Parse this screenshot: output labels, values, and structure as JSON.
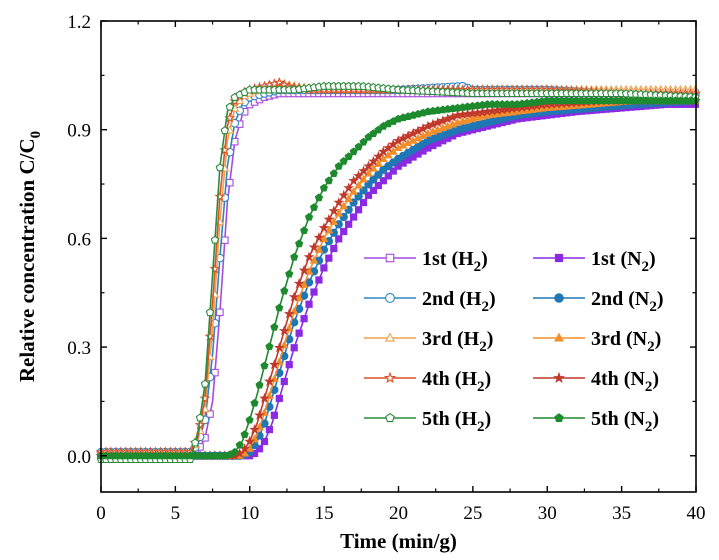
{
  "chart_data": {
    "type": "scatter",
    "title": "",
    "xlabel": "Time (min/g)",
    "ylabel": "Relative concentration C/C",
    "ylabel_sub": "0",
    "xlim": [
      0,
      40
    ],
    "ylim": [
      -0.1,
      1.2
    ],
    "x_ticks": [
      0,
      5,
      10,
      15,
      20,
      25,
      30,
      35,
      40
    ],
    "y_ticks": [
      0.0,
      0.3,
      0.6,
      0.9,
      1.2
    ],
    "y_tick_labels": [
      "0.0",
      "0.3",
      "0.6",
      "0.9",
      "1.2"
    ],
    "grid": false,
    "legend_position": "center-right",
    "series": [
      {
        "label": "1st (H",
        "sub": "2",
        "close": ")",
        "color": "#A64AE0",
        "marker": "square",
        "filled": false,
        "points": [
          [
            0,
            0
          ],
          [
            2,
            0
          ],
          [
            4,
            0
          ],
          [
            6,
            0
          ],
          [
            6.6,
            0.02
          ],
          [
            7,
            0.05
          ],
          [
            7.5,
            0.15
          ],
          [
            8,
            0.4
          ],
          [
            8.5,
            0.7
          ],
          [
            9,
            0.87
          ],
          [
            9.5,
            0.94
          ],
          [
            10,
            0.97
          ],
          [
            11,
            0.99
          ],
          [
            12,
            1.0
          ],
          [
            13,
            1.0
          ],
          [
            15,
            1.0
          ],
          [
            20,
            1.0
          ],
          [
            25,
            1.0
          ],
          [
            30,
            1.0
          ],
          [
            35,
            1.0
          ],
          [
            40,
            1.0
          ]
        ]
      },
      {
        "label": "1st (N",
        "sub": "2",
        "close": ")",
        "color": "#8A2BE2",
        "marker": "square",
        "filled": true,
        "points": [
          [
            0,
            0
          ],
          [
            5,
            0
          ],
          [
            10,
            0
          ],
          [
            10.5,
            0.01
          ],
          [
            11,
            0.04
          ],
          [
            11.5,
            0.09
          ],
          [
            12,
            0.16
          ],
          [
            12.5,
            0.23
          ],
          [
            13,
            0.3
          ],
          [
            14,
            0.42
          ],
          [
            15,
            0.52
          ],
          [
            16,
            0.6
          ],
          [
            17,
            0.66
          ],
          [
            18,
            0.72
          ],
          [
            19,
            0.76
          ],
          [
            20,
            0.8
          ],
          [
            22,
            0.85
          ],
          [
            24,
            0.89
          ],
          [
            26,
            0.91
          ],
          [
            28,
            0.93
          ],
          [
            30,
            0.94
          ],
          [
            32,
            0.95
          ],
          [
            35,
            0.96
          ],
          [
            38,
            0.97
          ],
          [
            40,
            0.97
          ]
        ]
      },
      {
        "label": "2nd (H",
        "sub": "2",
        "close": ")",
        "color": "#2E86C1",
        "marker": "circle",
        "filled": false,
        "points": [
          [
            0,
            0.01
          ],
          [
            3,
            0.01
          ],
          [
            6,
            0.01
          ],
          [
            6.5,
            0.03
          ],
          [
            7,
            0.1
          ],
          [
            7.5,
            0.28
          ],
          [
            8,
            0.55
          ],
          [
            8.5,
            0.8
          ],
          [
            9,
            0.92
          ],
          [
            9.5,
            0.97
          ],
          [
            10,
            0.99
          ],
          [
            11,
            1.0
          ],
          [
            12,
            1.01
          ],
          [
            15,
            1.01
          ],
          [
            20,
            1.01
          ],
          [
            24.3,
            1.02
          ],
          [
            25,
            1.01
          ],
          [
            30,
            1.01
          ],
          [
            35,
            1.0
          ],
          [
            40,
            1.0
          ]
        ]
      },
      {
        "label": "2nd (N",
        "sub": "2",
        "close": ")",
        "color": "#1F77B4",
        "marker": "circle",
        "filled": true,
        "points": [
          [
            0,
            0
          ],
          [
            5,
            0
          ],
          [
            9.5,
            0
          ],
          [
            10,
            0.01
          ],
          [
            10.5,
            0.04
          ],
          [
            11,
            0.09
          ],
          [
            11.5,
            0.16
          ],
          [
            12,
            0.23
          ],
          [
            12.5,
            0.3
          ],
          [
            13,
            0.37
          ],
          [
            14,
            0.48
          ],
          [
            15,
            0.57
          ],
          [
            16,
            0.64
          ],
          [
            17,
            0.7
          ],
          [
            18,
            0.75
          ],
          [
            19,
            0.79
          ],
          [
            20,
            0.82
          ],
          [
            22,
            0.87
          ],
          [
            24,
            0.9
          ],
          [
            26,
            0.92
          ],
          [
            28,
            0.94
          ],
          [
            30,
            0.95
          ],
          [
            33,
            0.96
          ],
          [
            36,
            0.97
          ],
          [
            40,
            0.98
          ]
        ]
      },
      {
        "label": "3rd (H",
        "sub": "2",
        "close": ")",
        "color": "#F0A24A",
        "marker": "triangle",
        "filled": false,
        "points": [
          [
            0,
            0.01
          ],
          [
            3,
            0.01
          ],
          [
            6,
            0.01
          ],
          [
            6.5,
            0.04
          ],
          [
            7,
            0.13
          ],
          [
            7.5,
            0.35
          ],
          [
            8,
            0.65
          ],
          [
            8.5,
            0.87
          ],
          [
            9,
            0.96
          ],
          [
            9.5,
            0.99
          ],
          [
            10,
            1.0
          ],
          [
            11,
            1.02
          ],
          [
            12,
            1.03
          ],
          [
            13,
            1.02
          ],
          [
            15,
            1.01
          ],
          [
            20,
            1.01
          ],
          [
            25,
            1.01
          ],
          [
            30,
            1.01
          ],
          [
            35,
            1.01
          ],
          [
            40,
            1.01
          ]
        ]
      },
      {
        "label": "3rd (N",
        "sub": "2",
        "close": ")",
        "color": "#F28E2B",
        "marker": "triangle",
        "filled": true,
        "points": [
          [
            0,
            0
          ],
          [
            5,
            0
          ],
          [
            9.5,
            0
          ],
          [
            10,
            0.02
          ],
          [
            10.5,
            0.06
          ],
          [
            11,
            0.12
          ],
          [
            11.5,
            0.19
          ],
          [
            12,
            0.26
          ],
          [
            12.5,
            0.33
          ],
          [
            13,
            0.4
          ],
          [
            14,
            0.51
          ],
          [
            15,
            0.6
          ],
          [
            16,
            0.67
          ],
          [
            17,
            0.73
          ],
          [
            18,
            0.78
          ],
          [
            19,
            0.82
          ],
          [
            20,
            0.85
          ],
          [
            22,
            0.89
          ],
          [
            24,
            0.92
          ],
          [
            26,
            0.94
          ],
          [
            28,
            0.95
          ],
          [
            30,
            0.96
          ],
          [
            33,
            0.97
          ],
          [
            36,
            0.98
          ],
          [
            40,
            0.98
          ]
        ]
      },
      {
        "label": "4th (H",
        "sub": "2",
        "close": ")",
        "color": "#D9532A",
        "marker": "star",
        "filled": false,
        "points": [
          [
            0,
            0.01
          ],
          [
            3,
            0.01
          ],
          [
            6,
            0.01
          ],
          [
            6.5,
            0.05
          ],
          [
            7,
            0.16
          ],
          [
            7.5,
            0.42
          ],
          [
            8,
            0.72
          ],
          [
            8.5,
            0.91
          ],
          [
            9,
            0.98
          ],
          [
            9.5,
            1.0
          ],
          [
            10,
            1.01
          ],
          [
            11,
            1.02
          ],
          [
            12,
            1.03
          ],
          [
            12.5,
            1.02
          ],
          [
            14,
            1.01
          ],
          [
            20,
            1.01
          ],
          [
            25,
            1.01
          ],
          [
            30,
            1.01
          ],
          [
            35,
            1.0
          ],
          [
            40,
            1.0
          ]
        ]
      },
      {
        "label": "4th (N",
        "sub": "2",
        "close": ")",
        "color": "#C0392B",
        "marker": "star",
        "filled": true,
        "points": [
          [
            0,
            0
          ],
          [
            5,
            0
          ],
          [
            9,
            0
          ],
          [
            9.5,
            0.01
          ],
          [
            10,
            0.04
          ],
          [
            10.5,
            0.09
          ],
          [
            11,
            0.16
          ],
          [
            11.5,
            0.23
          ],
          [
            12,
            0.3
          ],
          [
            12.5,
            0.37
          ],
          [
            13,
            0.44
          ],
          [
            14,
            0.55
          ],
          [
            15,
            0.63
          ],
          [
            16,
            0.7
          ],
          [
            17,
            0.76
          ],
          [
            18,
            0.8
          ],
          [
            19,
            0.84
          ],
          [
            20,
            0.87
          ],
          [
            22,
            0.91
          ],
          [
            24,
            0.94
          ],
          [
            26,
            0.95
          ],
          [
            28,
            0.96
          ],
          [
            30,
            0.97
          ],
          [
            34,
            0.98
          ],
          [
            40,
            0.98
          ]
        ]
      },
      {
        "label": "5th (H",
        "sub": "2",
        "close": ")",
        "color": "#2E8B3E",
        "marker": "pentagon",
        "filled": false,
        "points": [
          [
            0,
            -0.01
          ],
          [
            2,
            -0.01
          ],
          [
            4,
            -0.01
          ],
          [
            6,
            -0.01
          ],
          [
            6.5,
            0.06
          ],
          [
            7,
            0.2
          ],
          [
            7.5,
            0.5
          ],
          [
            8,
            0.8
          ],
          [
            8.5,
            0.95
          ],
          [
            9,
            0.99
          ],
          [
            9.5,
            1.0
          ],
          [
            10,
            1.01
          ],
          [
            11,
            1.01
          ],
          [
            13,
            1.01
          ],
          [
            15,
            1.02
          ],
          [
            17.5,
            1.02
          ],
          [
            20,
            1.01
          ],
          [
            25,
            1.0
          ],
          [
            30,
            1.0
          ],
          [
            35,
            1.0
          ],
          [
            40,
            0.99
          ]
        ]
      },
      {
        "label": "5th (N",
        "sub": "2",
        "close": ")",
        "color": "#1E8A2E",
        "marker": "pentagon",
        "filled": true,
        "points": [
          [
            0,
            0
          ],
          [
            5,
            0
          ],
          [
            8.5,
            0
          ],
          [
            9,
            0.01
          ],
          [
            9.5,
            0.04
          ],
          [
            10,
            0.1
          ],
          [
            10.5,
            0.17
          ],
          [
            11,
            0.25
          ],
          [
            11.5,
            0.33
          ],
          [
            12,
            0.41
          ],
          [
            12.5,
            0.48
          ],
          [
            13,
            0.55
          ],
          [
            14,
            0.66
          ],
          [
            15,
            0.74
          ],
          [
            16,
            0.8
          ],
          [
            17,
            0.84
          ],
          [
            18,
            0.88
          ],
          [
            19,
            0.91
          ],
          [
            20,
            0.93
          ],
          [
            22,
            0.95
          ],
          [
            24,
            0.96
          ],
          [
            26,
            0.97
          ],
          [
            28,
            0.97
          ],
          [
            30,
            0.98
          ],
          [
            34,
            0.98
          ],
          [
            40,
            0.98
          ]
        ]
      }
    ]
  }
}
